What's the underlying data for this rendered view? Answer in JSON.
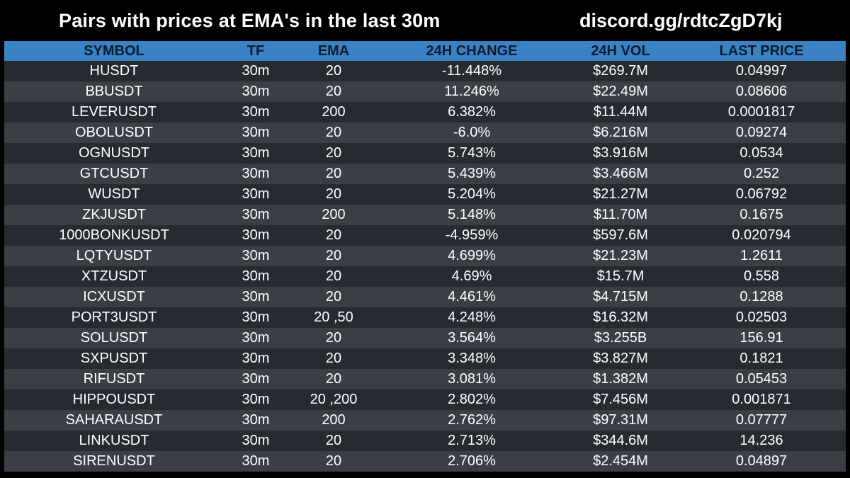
{
  "header": {
    "title": "Pairs with prices at EMA's in the last 30m",
    "link": "discord.gg/rdtcZgD7kj"
  },
  "table": {
    "columns": [
      "SYMBOL",
      "TF",
      "EMA",
      "24H CHANGE",
      "24H VOL",
      "LAST PRICE"
    ],
    "rows": [
      [
        "HUSDT",
        "30m",
        "20",
        "-11.448%",
        "$269.7M",
        "0.04997"
      ],
      [
        "BBUSDT",
        "30m",
        "20",
        "11.246%",
        "$22.49M",
        "0.08606"
      ],
      [
        "LEVERUSDT",
        "30m",
        "200",
        "6.382%",
        "$11.44M",
        "0.0001817"
      ],
      [
        "OBOLUSDT",
        "30m",
        "20",
        "-6.0%",
        "$6.216M",
        "0.09274"
      ],
      [
        "OGNUSDT",
        "30m",
        "20",
        "5.743%",
        "$3.916M",
        "0.0534"
      ],
      [
        "GTCUSDT",
        "30m",
        "20",
        "5.439%",
        "$3.466M",
        "0.252"
      ],
      [
        "WUSDT",
        "30m",
        "20",
        "5.204%",
        "$21.27M",
        "0.06792"
      ],
      [
        "ZKJUSDT",
        "30m",
        "200",
        "5.148%",
        "$11.70M",
        "0.1675"
      ],
      [
        "1000BONKUSDT",
        "30m",
        "20",
        "-4.959%",
        "$597.6M",
        "0.020794"
      ],
      [
        "LQTYUSDT",
        "30m",
        "20",
        "4.699%",
        "$21.23M",
        "1.2611"
      ],
      [
        "XTZUSDT",
        "30m",
        "20",
        "4.69%",
        "$15.7M",
        "0.558"
      ],
      [
        "ICXUSDT",
        "30m",
        "20",
        "4.461%",
        "$4.715M",
        "0.1288"
      ],
      [
        "PORT3USDT",
        "30m",
        "20 ,50",
        "4.248%",
        "$16.32M",
        "0.02503"
      ],
      [
        "SOLUSDT",
        "30m",
        "20",
        "3.564%",
        "$3.255B",
        "156.91"
      ],
      [
        "SXPUSDT",
        "30m",
        "20",
        "3.348%",
        "$3.827M",
        "0.1821"
      ],
      [
        "RIFUSDT",
        "30m",
        "20",
        "3.081%",
        "$1.382M",
        "0.05453"
      ],
      [
        "HIPPOUSDT",
        "30m",
        "20 ,200",
        "2.802%",
        "$7.456M",
        "0.001871"
      ],
      [
        "SAHARAUSDT",
        "30m",
        "200",
        "2.762%",
        "$97.31M",
        "0.07777"
      ],
      [
        "LINKUSDT",
        "30m",
        "20",
        "2.713%",
        "$344.6M",
        "14.236"
      ],
      [
        "SIRENUSDT",
        "30m",
        "20",
        "2.706%",
        "$2.454M",
        "0.04897"
      ]
    ]
  },
  "colors": {
    "background": "#000000",
    "header_bar": "#3a82c4",
    "row_dark": "#262b31",
    "row_light": "#3a3f46",
    "text": "#ffffff"
  }
}
